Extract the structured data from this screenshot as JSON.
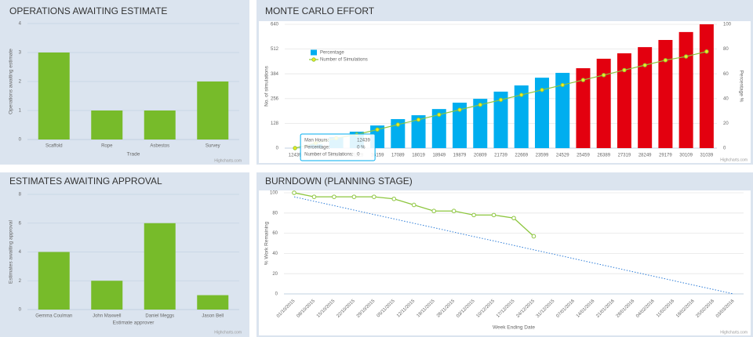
{
  "chart_data": [
    {
      "type": "bar",
      "title": "OPERATIONS AWAITING ESTIMATE",
      "categories": [
        "Scaffold",
        "Rope",
        "Asbestos",
        "Survey"
      ],
      "values": [
        3,
        1,
        1,
        2
      ],
      "color": "#77bb2a",
      "ylim": [
        0,
        4
      ],
      "yticks": [
        0,
        1,
        2,
        3,
        4
      ],
      "grid": true,
      "ylabel": "Operations awaiting estimate",
      "xlabel": "Trade",
      "credits": "Highcharts.com"
    },
    {
      "type": "combo",
      "title": "MONTE CARLO EFFORT",
      "categories": [
        "12439",
        "13369",
        "14299",
        "15229",
        "16159",
        "17089",
        "18019",
        "18949",
        "19879",
        "20809",
        "21739",
        "22669",
        "23599",
        "24529",
        "25459",
        "26389",
        "27319",
        "28249",
        "29179",
        "30109",
        "31039"
      ],
      "series": [
        {
          "name": "Percentage",
          "type": "bar",
          "color": "#00aeef",
          "colors": [
            "#00aeef",
            "#00aeef",
            "#00aeef",
            "#00aeef",
            "#00aeef",
            "#00aeef",
            "#00aeef",
            "#00aeef",
            "#00aeef",
            "#00aeef",
            "#00aeef",
            "#00aeef",
            "#00aeef",
            "#00aeef",
            "#e3000f",
            "#e3000f",
            "#e3000f",
            "#e3000f",
            "#e3000f",
            "#e3000f",
            "#e3000f"
          ],
          "values": [
            0,
            20,
            57,
            85,
            117,
            150,
            170,
            202,
            235,
            255,
            292,
            324,
            364,
            389,
            413,
            462,
            490,
            522,
            559,
            600,
            640
          ]
        },
        {
          "name": "Number of Simulations",
          "type": "line",
          "axis": "y2",
          "color": "#8dc63f",
          "values": [
            0,
            4,
            8,
            11,
            15,
            19,
            23,
            27,
            31,
            35,
            39,
            43,
            47,
            51,
            55,
            59,
            63,
            67,
            71,
            74,
            78
          ]
        }
      ],
      "ylim": [
        0,
        640
      ],
      "yticks": [
        0,
        128,
        256,
        384,
        512,
        640
      ],
      "y2lim": [
        0,
        100
      ],
      "y2ticks": [
        0,
        20,
        40,
        60,
        80,
        100
      ],
      "grid": true,
      "ylabel": "No. of simulations",
      "y2label": "Percentage %",
      "legend": "top-left",
      "tooltip": {
        "rows": [
          [
            "Man Hours:",
            "12439"
          ],
          [
            "Percentage:",
            "0 %"
          ],
          [
            "Number of Simulations:",
            "0"
          ]
        ]
      },
      "credits": "Highcharts.com"
    },
    {
      "type": "bar",
      "title": "ESTIMATES AWAITING APPROVAL",
      "categories": [
        "Gemma Coulman",
        "John Maxwell",
        "Daniel Meggs",
        "Jason Bell"
      ],
      "values": [
        4,
        2,
        6,
        1
      ],
      "color": "#77bb2a",
      "ylim": [
        0,
        8
      ],
      "yticks": [
        0,
        2,
        4,
        6,
        8
      ],
      "grid": true,
      "ylabel": "Estimates awaiting approval",
      "xlabel": "Estimate approver",
      "credits": "Highcharts.com"
    },
    {
      "type": "line",
      "title": "BURNDOWN (PLANNING STAGE)",
      "categories": [
        "01/10/2015",
        "08/10/2015",
        "15/10/2015",
        "22/10/2015",
        "29/10/2015",
        "05/11/2015",
        "12/11/2015",
        "19/11/2015",
        "26/11/2015",
        "03/12/2015",
        "10/12/2015",
        "17/12/2015",
        "24/12/2015",
        "31/12/2015",
        "07/01/2016",
        "14/01/2016",
        "21/01/2016",
        "28/01/2016",
        "04/02/2016",
        "11/02/2016",
        "18/02/2016",
        "25/02/2016",
        "03/03/2016"
      ],
      "series": [
        {
          "color": "#8dc63f",
          "markers": true,
          "style": "solid",
          "values": [
            100,
            96,
            96,
            96,
            96,
            94,
            88,
            82,
            82,
            78,
            78,
            75,
            57,
            null,
            null,
            null,
            null,
            null,
            null,
            null,
            null,
            null,
            null
          ]
        },
        {
          "color": "#2f7ed8",
          "markers": false,
          "style": "dotted",
          "values": [
            96,
            91.6,
            87.3,
            82.9,
            78.5,
            74.2,
            69.8,
            65.5,
            61.1,
            56.7,
            52.4,
            48,
            43.6,
            39.3,
            34.9,
            30.5,
            26.2,
            21.8,
            17.5,
            13.1,
            8.7,
            4.4,
            0
          ]
        }
      ],
      "ylim": [
        0,
        100
      ],
      "yticks": [
        0,
        20,
        40,
        60,
        80,
        100
      ],
      "grid": true,
      "ylabel": "% Work Remaining",
      "xlabel": "Week Ending Date",
      "credits": "Highcharts.com"
    }
  ]
}
